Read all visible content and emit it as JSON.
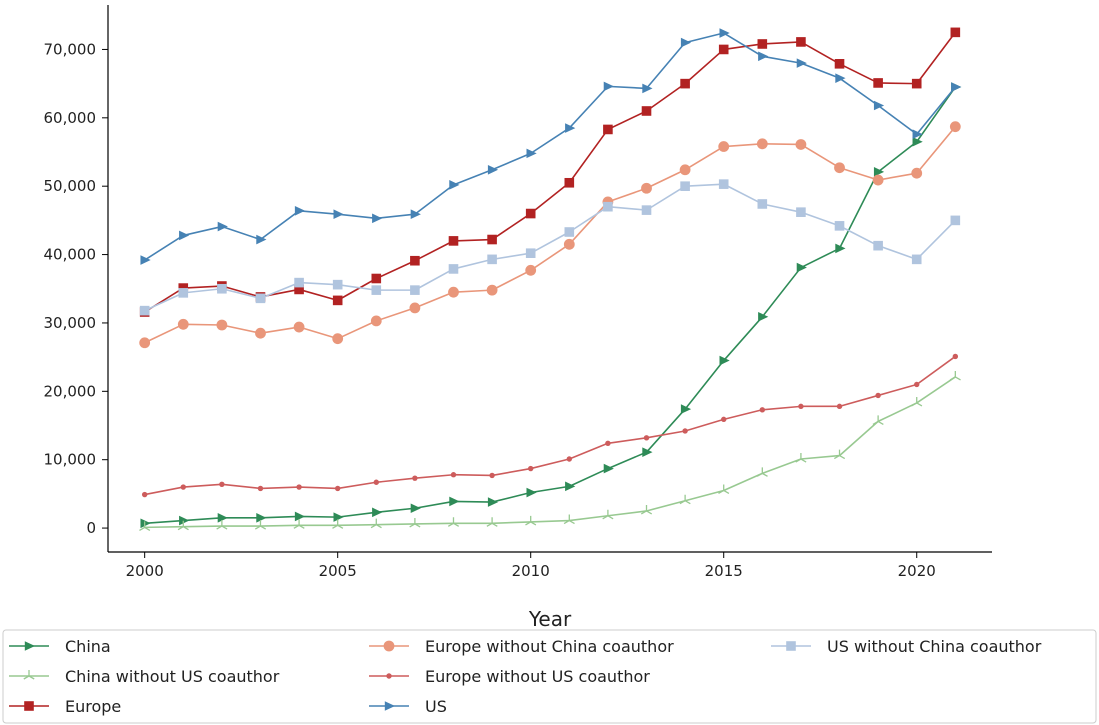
{
  "chart_data": {
    "type": "line",
    "xlabel": "Year",
    "ylabel": "",
    "xlim": [
      1999.05,
      2021.95
    ],
    "ylim": [
      -3500,
      76500
    ],
    "x_ticks": [
      2000,
      2005,
      2010,
      2015,
      2020
    ],
    "y_ticks": [
      0,
      10000,
      20000,
      30000,
      40000,
      50000,
      60000,
      70000
    ],
    "y_tick_labels": [
      "0",
      "10,000",
      "20,000",
      "30,000",
      "40,000",
      "50,000",
      "60,000",
      "70,000"
    ],
    "x": [
      2000,
      2001,
      2002,
      2003,
      2004,
      2005,
      2006,
      2007,
      2008,
      2009,
      2010,
      2011,
      2012,
      2013,
      2014,
      2015,
      2016,
      2017,
      2018,
      2019,
      2020,
      2021
    ],
    "legend_position": "bottom",
    "grid": false,
    "series": [
      {
        "name": "China",
        "color": "#2e8b57",
        "marker": "triangle-right",
        "values": [
          700,
          1100,
          1500,
          1500,
          1700,
          1600,
          2300,
          2900,
          3900,
          3800,
          5200,
          6100,
          8700,
          11100,
          17400,
          24500,
          30900,
          38100,
          40900,
          52100,
          56500,
          64500
        ]
      },
      {
        "name": "China without US coauthor",
        "color": "#98c991",
        "marker": "tri",
        "values": [
          100,
          200,
          300,
          300,
          400,
          400,
          500,
          600,
          700,
          700,
          900,
          1100,
          1800,
          2500,
          4000,
          5500,
          8000,
          10100,
          10600,
          15600,
          18300,
          22100
        ]
      },
      {
        "name": "Europe",
        "color": "#b22222",
        "marker": "square",
        "values": [
          31600,
          35100,
          35400,
          33800,
          34900,
          33300,
          36500,
          39100,
          42000,
          42200,
          46000,
          50500,
          58300,
          61000,
          65000,
          70000,
          70800,
          71100,
          67900,
          65100,
          65000,
          72500
        ]
      },
      {
        "name": "Europe without China coauthor",
        "color": "#e9967a",
        "marker": "circle",
        "values": [
          27100,
          29800,
          29700,
          28500,
          29400,
          27700,
          30300,
          32200,
          34500,
          34800,
          37700,
          41500,
          47700,
          49700,
          52400,
          55800,
          56200,
          56100,
          52700,
          50900,
          51900,
          58700
        ]
      },
      {
        "name": "Europe without US coauthor",
        "color": "#cd5c5c",
        "marker": "dot",
        "values": [
          4900,
          6000,
          6400,
          5800,
          6000,
          5800,
          6700,
          7300,
          7800,
          7700,
          8700,
          10100,
          12400,
          13200,
          14200,
          15900,
          17300,
          17800,
          17800,
          19400,
          21000,
          25100
        ]
      },
      {
        "name": "US",
        "color": "#4682b4",
        "marker": "triangle-right",
        "values": [
          39200,
          42800,
          44100,
          42200,
          46400,
          45900,
          45300,
          45900,
          50200,
          52400,
          54800,
          58500,
          64600,
          64300,
          71000,
          72400,
          69000,
          68000,
          65800,
          61800,
          57600,
          64500
        ]
      },
      {
        "name": "US without China coauthor",
        "color": "#b0c4de",
        "marker": "square",
        "values": [
          31800,
          34400,
          35000,
          33600,
          35900,
          35600,
          34800,
          34800,
          37900,
          39300,
          40200,
          43300,
          47000,
          46500,
          50000,
          50300,
          47400,
          46200,
          44200,
          41300,
          39300,
          45000
        ]
      }
    ]
  }
}
